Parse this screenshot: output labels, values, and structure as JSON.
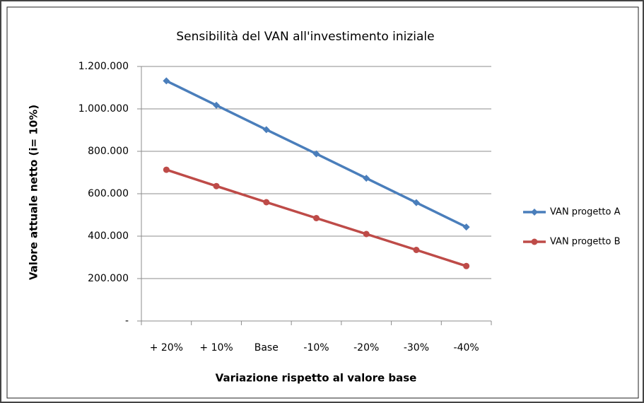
{
  "chart_data": {
    "type": "line",
    "title": "Sensibilità del VAN all'investimento iniziale",
    "x_label": "Variazione rispetto al valore base",
    "y_label": "Valore attuale netto (i= 10%)",
    "categories": [
      "+ 20%",
      "+ 10%",
      "Base",
      "-10%",
      "-20%",
      "-30%",
      "-40%"
    ],
    "series": [
      {
        "name": "VAN progetto A",
        "color": "#4a7ebb",
        "marker": "diamond",
        "values": [
          1132000,
          1017000,
          902000,
          788000,
          673000,
          558000,
          443000
        ]
      },
      {
        "name": "VAN progetto B",
        "color": "#be4b48",
        "marker": "circle",
        "values": [
          713000,
          636000,
          560000,
          485000,
          410000,
          335000,
          259000
        ]
      }
    ],
    "ylim": [
      0,
      1200000
    ],
    "yticks": [
      {
        "value": 0,
        "label": "-"
      },
      {
        "value": 200000,
        "label": "200.000"
      },
      {
        "value": 400000,
        "label": "400.000"
      },
      {
        "value": 600000,
        "label": "600.000"
      },
      {
        "value": 800000,
        "label": "800.000"
      },
      {
        "value": 1000000,
        "label": "1.000.000"
      },
      {
        "value": 1200000,
        "label": "1.200.000"
      }
    ],
    "grid": true,
    "legend": "right"
  }
}
